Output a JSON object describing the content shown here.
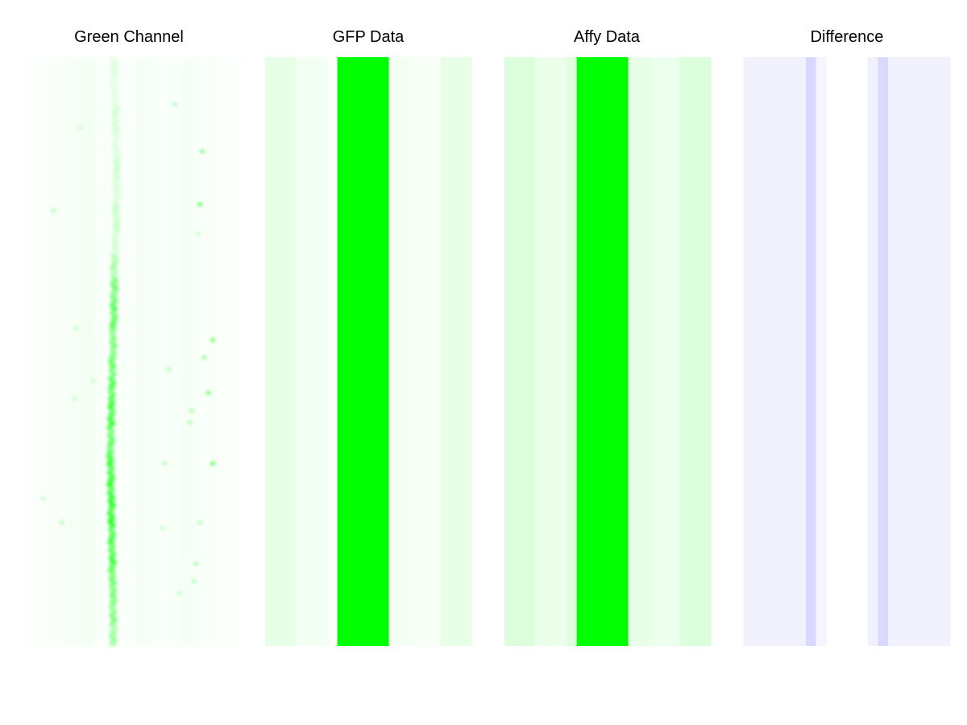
{
  "chart_data": [
    {
      "type": "heatmap",
      "title": "Green Channel",
      "color": "#00ff00",
      "description_kind": "microscopy-channel",
      "column_profile": [
        0.03,
        0.04,
        0.03,
        0.05,
        0.04,
        0.06,
        0.05,
        0.08,
        0.12,
        0.22,
        0.55,
        0.28,
        0.12,
        0.07,
        0.05,
        0.04,
        0.05,
        0.04,
        0.06,
        0.05,
        0.04,
        0.05,
        0.03,
        0.04
      ],
      "stripe_intensity_by_row": [
        0.15,
        0.12,
        0.18,
        0.14,
        0.2,
        0.16,
        0.22,
        0.18,
        0.35,
        0.55,
        0.62,
        0.5,
        0.58,
        0.66,
        0.72,
        0.6,
        0.75,
        0.78,
        0.8,
        0.7,
        0.72,
        0.55,
        0.48,
        0.4
      ],
      "stripe_offset_by_row": [
        0.0,
        0.0,
        0.05,
        0.08,
        0.1,
        0.1,
        0.08,
        0.05,
        0.0,
        0.0,
        -0.02,
        -0.05,
        -0.08,
        -0.1,
        -0.12,
        -0.14,
        -0.16,
        -0.14,
        -0.12,
        -0.1,
        -0.08,
        -0.06,
        -0.05,
        -0.04
      ],
      "speckles": [
        [
          0.72,
          0.08,
          0.25
        ],
        [
          0.27,
          0.12,
          0.2
        ],
        [
          0.85,
          0.16,
          0.4
        ],
        [
          0.84,
          0.25,
          0.5
        ],
        [
          0.14,
          0.26,
          0.25
        ],
        [
          0.83,
          0.3,
          0.2
        ],
        [
          0.9,
          0.48,
          0.45
        ],
        [
          0.86,
          0.51,
          0.35
        ],
        [
          0.25,
          0.46,
          0.2
        ],
        [
          0.69,
          0.53,
          0.25
        ],
        [
          0.33,
          0.55,
          0.2
        ],
        [
          0.8,
          0.6,
          0.3
        ],
        [
          0.9,
          0.69,
          0.5
        ],
        [
          0.67,
          0.69,
          0.25
        ],
        [
          0.18,
          0.79,
          0.25
        ],
        [
          0.84,
          0.79,
          0.25
        ],
        [
          0.82,
          0.86,
          0.3
        ],
        [
          0.09,
          0.75,
          0.2
        ],
        [
          0.74,
          0.91,
          0.2
        ],
        [
          0.66,
          0.8,
          0.2
        ],
        [
          0.79,
          0.62,
          0.3
        ],
        [
          0.88,
          0.57,
          0.45
        ],
        [
          0.81,
          0.89,
          0.25
        ],
        [
          0.24,
          0.58,
          0.2
        ]
      ]
    },
    {
      "type": "heatmap",
      "title": "GFP Data",
      "color": "#00ff00",
      "columns": [
        0.1,
        0.1,
        0.1,
        0.05,
        0.05,
        0.05,
        0.02,
        1.0,
        1.0,
        1.0,
        1.0,
        1.0,
        0.05,
        0.05,
        0.03,
        0.03,
        0.03,
        0.1,
        0.1,
        0.1
      ]
    },
    {
      "type": "heatmap",
      "title": "Affy Data",
      "color": "#00ff00",
      "columns": [
        0.14,
        0.14,
        0.14,
        0.08,
        0.08,
        0.08,
        0.12,
        1.0,
        1.0,
        1.0,
        1.0,
        1.0,
        0.1,
        0.1,
        0.07,
        0.07,
        0.07,
        0.14,
        0.14,
        0.14
      ]
    },
    {
      "type": "heatmap",
      "title": "Difference",
      "color": "#0000ff",
      "columns": [
        0.05,
        0.05,
        0.05,
        0.05,
        0.05,
        0.05,
        0.15,
        0.04,
        0.0,
        0.0,
        0.0,
        0.0,
        0.06,
        0.15,
        0.05,
        0.05,
        0.05,
        0.05,
        0.05,
        0.05
      ]
    }
  ]
}
